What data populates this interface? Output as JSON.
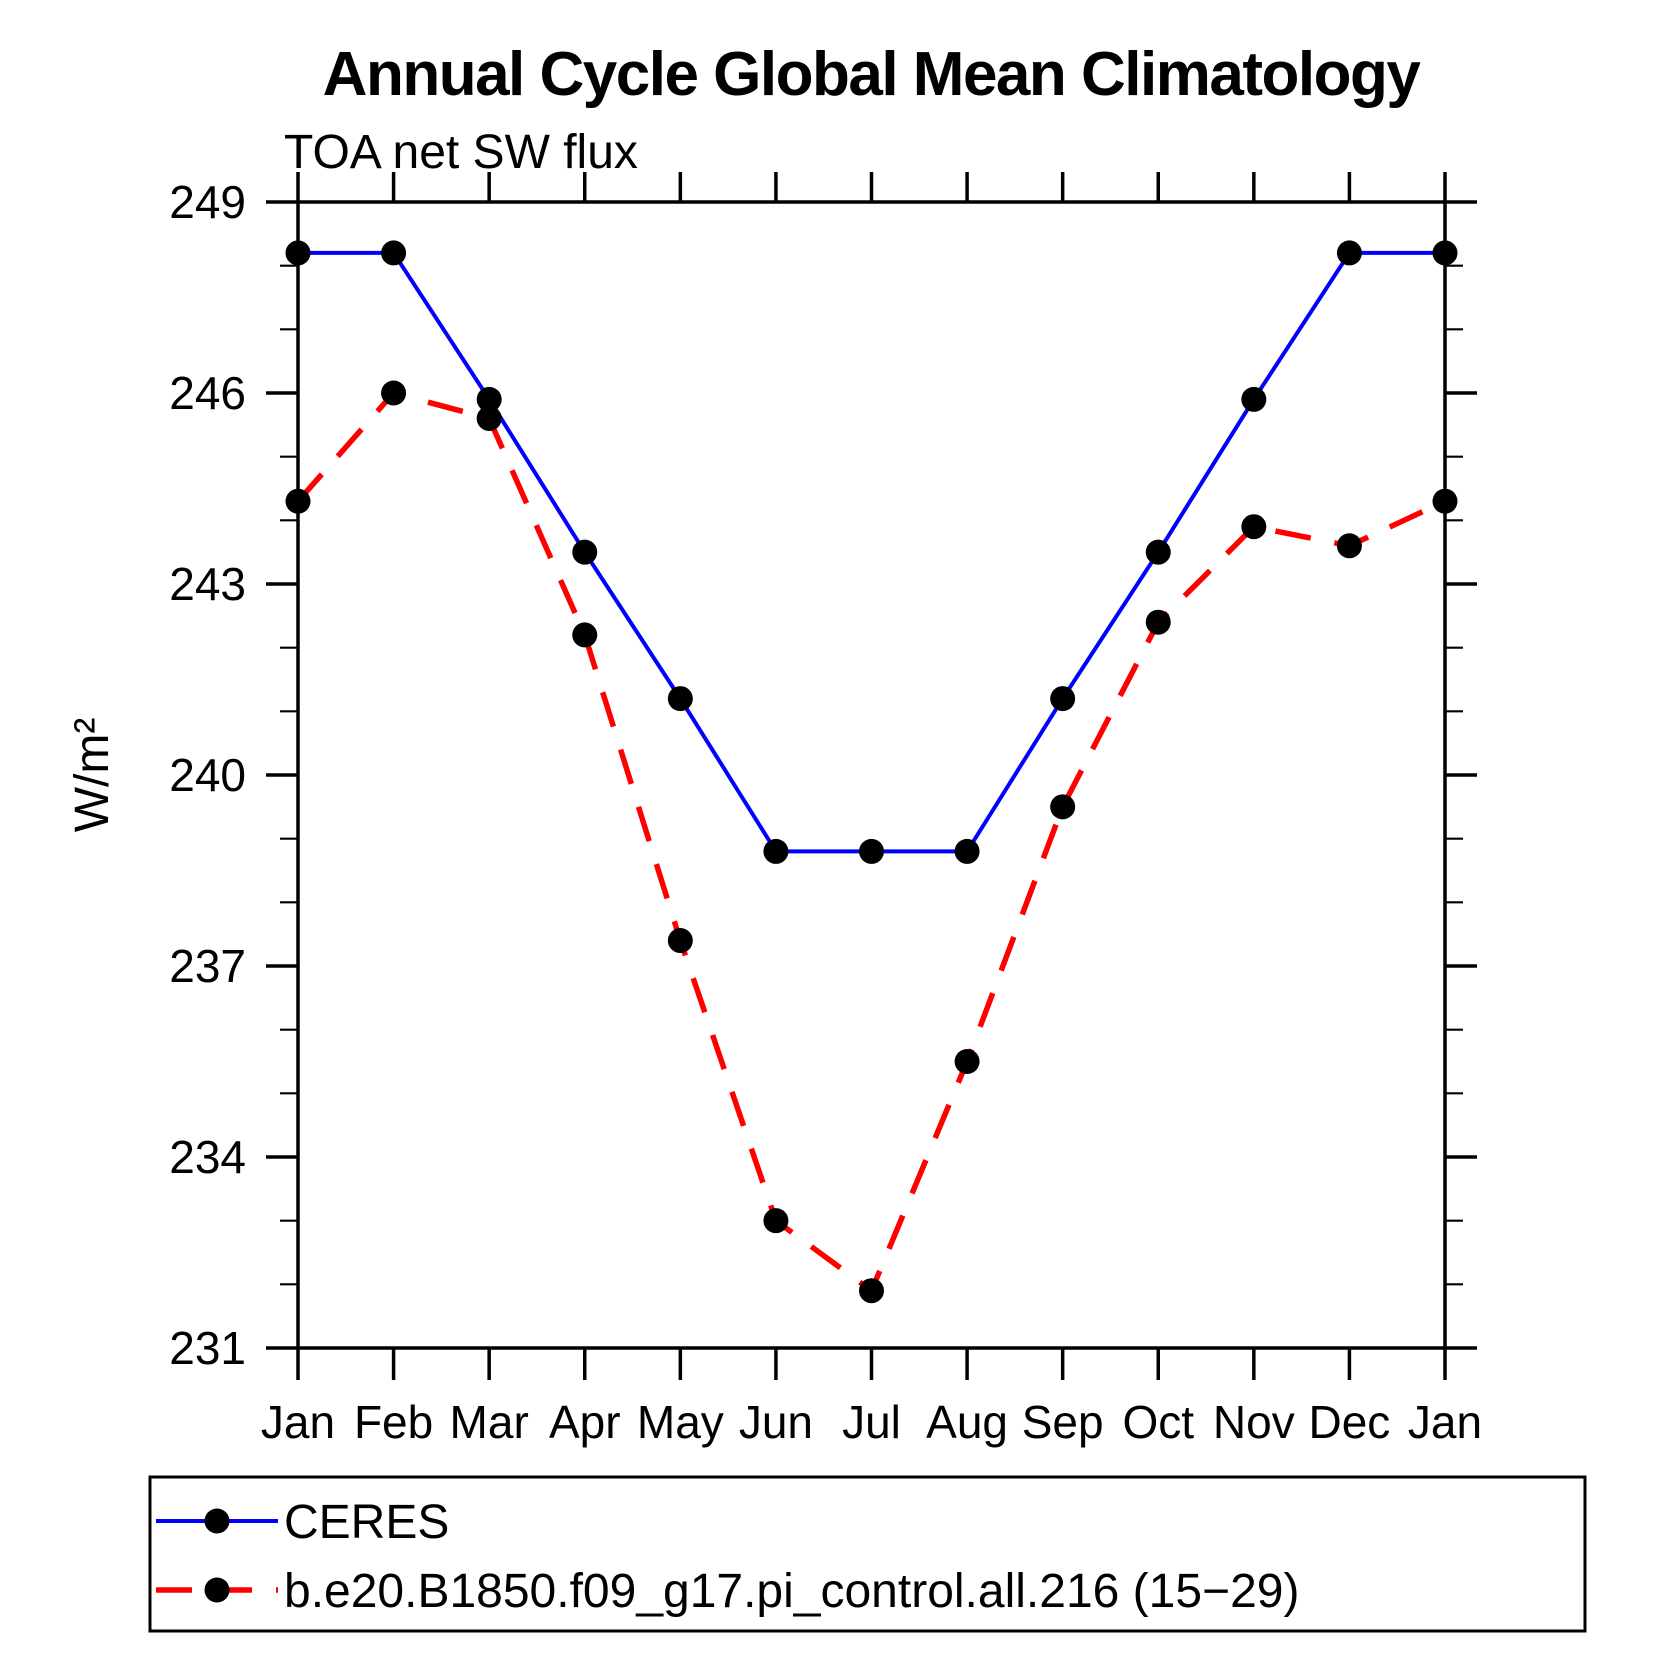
{
  "title": "Annual Cycle Global Mean Climatology",
  "subtitle": "TOA net SW flux",
  "chart_data": {
    "type": "line",
    "title": "Annual Cycle Global Mean Climatology",
    "subtitle": "TOA net SW flux",
    "xlabel": "",
    "ylabel": "W/m²",
    "x_categories": [
      "Jan",
      "Feb",
      "Mar",
      "Apr",
      "May",
      "Jun",
      "Jul",
      "Aug",
      "Sep",
      "Oct",
      "Nov",
      "Dec",
      "Jan"
    ],
    "ylim": [
      231,
      249
    ],
    "yticks_major": [
      231,
      234,
      237,
      240,
      243,
      246,
      249
    ],
    "ytick_minor_step": 1,
    "grid": false,
    "legend_position": "bottom-left",
    "axis_color": "#000000",
    "marker_color": "#000000",
    "series": [
      {
        "name": "CERES",
        "color": "#0000ff",
        "style": "solid",
        "marker": "circle",
        "values": [
          248.2,
          248.2,
          245.9,
          243.5,
          241.2,
          238.8,
          238.8,
          238.8,
          241.2,
          243.5,
          245.9,
          248.2,
          248.2
        ]
      },
      {
        "name": "b.e20.B1850.f09_g17.pi_control.all.216 (15−29)",
        "color": "#ff0000",
        "style": "dashed",
        "marker": "circle",
        "values": [
          244.3,
          246.0,
          245.6,
          242.2,
          237.4,
          233.0,
          231.9,
          235.5,
          239.5,
          242.4,
          243.9,
          243.6,
          244.3
        ]
      }
    ]
  }
}
